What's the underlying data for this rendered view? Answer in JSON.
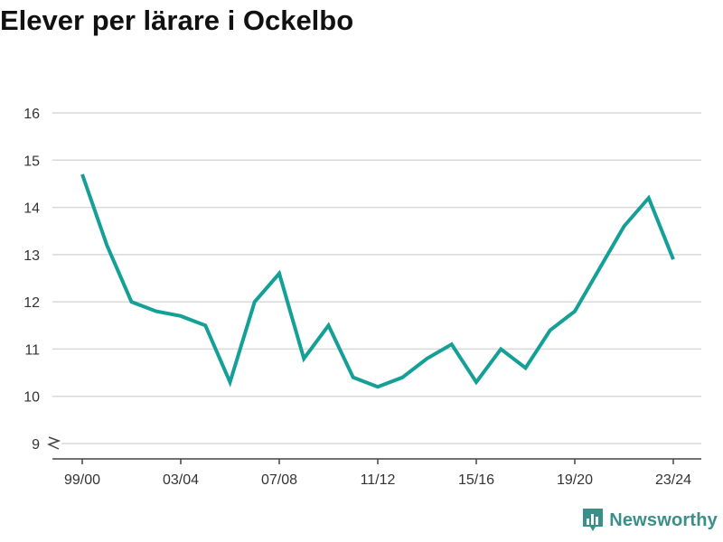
{
  "page": {
    "title": "Elever per lärare i Ockelbo",
    "brand": "Newsworthy"
  },
  "colors": {
    "line": "#14a097",
    "grid": "#d9d9d9",
    "axis": "#444444",
    "text": "#333333",
    "brand": "#3b8f8a"
  },
  "chart_data": {
    "type": "line",
    "title": "Elever per lärare i Ockelbo",
    "xlabel": "",
    "ylabel": "",
    "categories": [
      "99/00",
      "00/01",
      "01/02",
      "02/03",
      "03/04",
      "04/05",
      "05/06",
      "06/07",
      "07/08",
      "08/09",
      "09/10",
      "10/11",
      "11/12",
      "12/13",
      "13/14",
      "14/15",
      "15/16",
      "16/17",
      "17/18",
      "18/19",
      "19/20",
      "20/21",
      "21/22",
      "22/23",
      "23/24"
    ],
    "values": [
      14.7,
      13.2,
      12.0,
      11.8,
      11.7,
      11.5,
      10.3,
      12.0,
      12.6,
      10.8,
      11.5,
      10.4,
      10.2,
      10.4,
      10.8,
      11.1,
      10.3,
      11.0,
      10.6,
      11.4,
      11.8,
      12.7,
      13.6,
      14.2,
      12.9
    ],
    "x_tick_labels": [
      "99/00",
      "03/04",
      "07/08",
      "11/12",
      "15/16",
      "19/20",
      "23/24"
    ],
    "y_ticks": [
      9,
      10,
      11,
      12,
      13,
      14,
      15,
      16
    ],
    "ylim": [
      9,
      16
    ],
    "axis_break": true,
    "grid": true,
    "legend": "none"
  }
}
